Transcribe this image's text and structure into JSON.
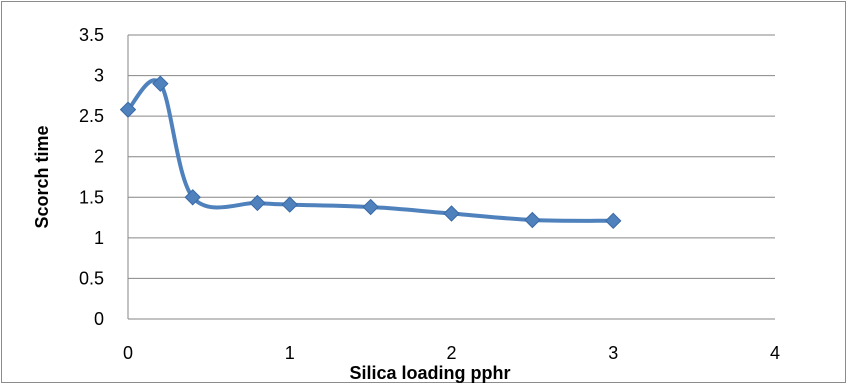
{
  "chart_data": {
    "type": "scatter",
    "title": "",
    "xlabel": "Silica loading pphr",
    "ylabel": "Scorch time",
    "xlim": [
      0,
      4
    ],
    "ylim": [
      0,
      3.5
    ],
    "x_ticks": [
      "0",
      "1",
      "2",
      "3",
      "4"
    ],
    "y_ticks": [
      "0",
      "0.5",
      "1",
      "1.5",
      "2",
      "2.5",
      "3",
      "3.5"
    ],
    "grid": "horizontal",
    "legend": "none",
    "smooth": true,
    "series": [
      {
        "color": "#4f81bd",
        "marker": "diamond",
        "points": [
          {
            "x": 0,
            "y": 2.58
          },
          {
            "x": 0.2,
            "y": 2.9
          },
          {
            "x": 0.4,
            "y": 1.5
          },
          {
            "x": 0.8,
            "y": 1.43
          },
          {
            "x": 1.0,
            "y": 1.41
          },
          {
            "x": 1.5,
            "y": 1.38
          },
          {
            "x": 2.0,
            "y": 1.3
          },
          {
            "x": 2.5,
            "y": 1.22
          },
          {
            "x": 3.0,
            "y": 1.21
          }
        ]
      }
    ]
  }
}
